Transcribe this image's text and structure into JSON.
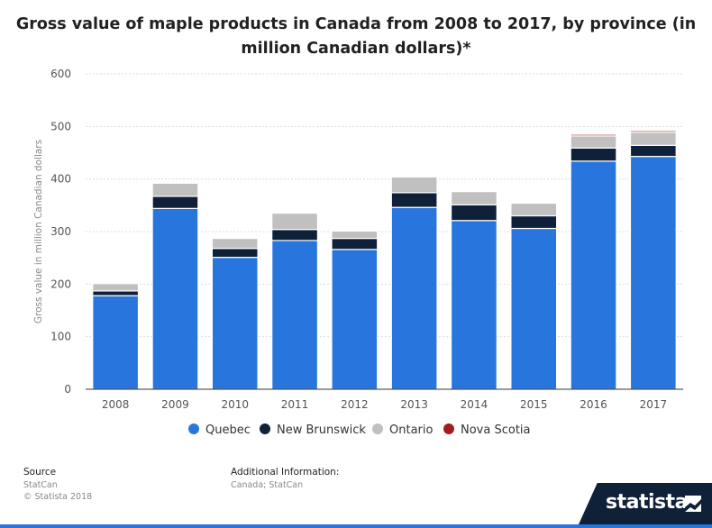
{
  "title": "Gross value of maple products in Canada from 2008 to 2017, by province (in million Canadian dollars)*",
  "colors": {
    "quebec": "#2876dd",
    "new_brunswick": "#0f2139",
    "ontario": "#c0c0c0",
    "nova_scotia": "#a51c1c"
  },
  "chart_data": {
    "type": "bar",
    "stacked": true,
    "title": "Gross value of maple products in Canada from 2008 to 2017, by province (in million Canadian dollars)*",
    "xlabel": "",
    "ylabel": "Gross value in million Canadian dollars",
    "ylim": [
      0,
      600
    ],
    "yticks": [
      0,
      100,
      200,
      300,
      400,
      500,
      600
    ],
    "grid": true,
    "legend_position": "bottom",
    "categories": [
      "2008",
      "2009",
      "2010",
      "2011",
      "2012",
      "2013",
      "2014",
      "2015",
      "2016",
      "2017"
    ],
    "series": [
      {
        "name": "Quebec",
        "color": "#2876dd",
        "values": [
          178,
          344,
          251,
          283,
          266,
          346,
          321,
          306,
          434,
          443
        ]
      },
      {
        "name": "New Brunswick",
        "color": "#0f2139",
        "values": [
          9,
          23,
          17,
          21,
          21,
          28,
          30,
          24,
          25,
          21
        ]
      },
      {
        "name": "Ontario",
        "color": "#c0c0c0",
        "values": [
          14,
          25,
          19,
          31,
          14,
          30,
          25,
          24,
          23,
          25
        ]
      },
      {
        "name": "Nova Scotia",
        "color": "#a51c1c",
        "values": [
          0,
          0,
          0,
          0,
          0,
          0,
          0,
          0,
          3,
          3
        ]
      }
    ]
  },
  "footer": {
    "source_label": "Source",
    "source_lines": [
      "StatCan",
      "© Statista 2018"
    ],
    "additional_label": "Additional Information:",
    "additional_text": "Canada; StatCan"
  },
  "brand": {
    "name": "statista"
  }
}
